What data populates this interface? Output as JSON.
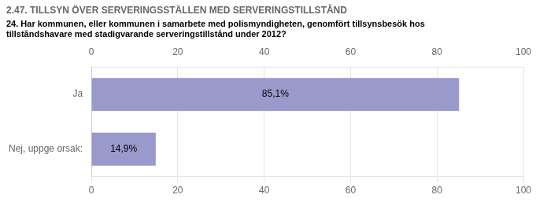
{
  "chart_data": {
    "type": "bar",
    "orientation": "horizontal",
    "title": "2.47. TILLSYN ÖVER SERVERINGSSTÄLLEN MED SERVERINGSTILLSTÅND",
    "subtitle": "24. Har kommunen, eller kommunen i samarbete med polismyndigheten, genomfört tillsynsbesök hos\ntillståndshavare med stadigvarande serveringstillstånd under 2012?",
    "categories": [
      "Ja",
      "Nej, uppge orsak:"
    ],
    "values": [
      85.1,
      14.9
    ],
    "value_labels": [
      "85,1%",
      "14,9%"
    ],
    "data_labels": true,
    "color": "#9999cc",
    "xlim": [
      0,
      100
    ],
    "xticks": [
      0,
      20,
      40,
      60,
      80,
      100
    ],
    "grid": true
  }
}
